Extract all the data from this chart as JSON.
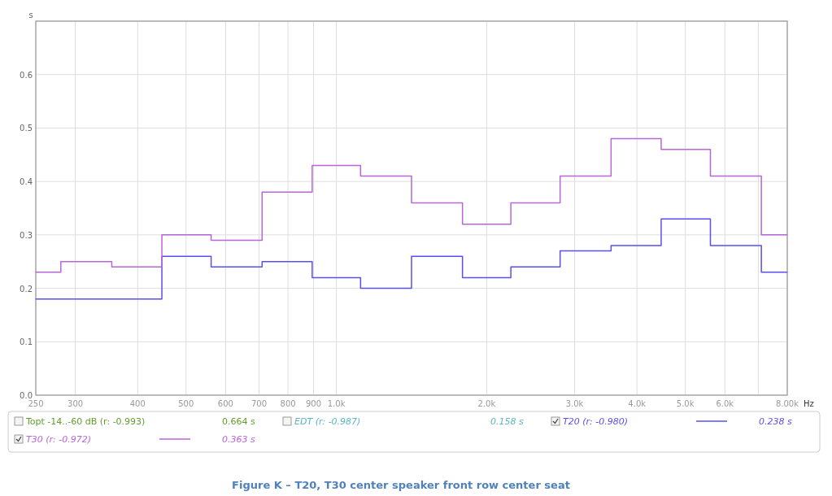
{
  "chart_data": {
    "type": "step",
    "title": "Figure K – T20, T30 center speaker front row center seat",
    "xlabel": "Hz",
    "ylabel": "s",
    "log": "x",
    "x": [
      250,
      315,
      400,
      500,
      630,
      800,
      1000,
      1250,
      1600,
      2000,
      2500,
      3150,
      4000,
      5000,
      6300,
      8000
    ],
    "xlim": [
      250,
      8000
    ],
    "xticks": [
      250,
      300,
      400,
      500,
      600,
      700,
      800,
      900,
      {
        "value": 1000,
        "label": "1.0k"
      },
      {
        "value": 2000,
        "label": "2.0k"
      },
      {
        "value": 3000,
        "label": "3.0k"
      },
      {
        "value": 4000,
        "label": "4.0k"
      },
      {
        "value": 5000,
        "label": "5.0k"
      },
      {
        "value": 6000,
        "label": "6.0k"
      },
      {
        "value": 7000,
        "label": null
      },
      {
        "value": 8000,
        "label": "8.00k"
      }
    ],
    "ylim": [
      0,
      0.7
    ],
    "yticks": [
      {
        "value": 0,
        "label": "0.0"
      },
      {
        "value": 0.1,
        "label": "0.1"
      },
      {
        "value": 0.2,
        "label": "0.2"
      },
      {
        "value": 0.3,
        "label": "0.3"
      },
      {
        "value": 0.4,
        "label": "0.4"
      },
      {
        "value": 0.5,
        "label": "0.5"
      },
      {
        "value": 0.6,
        "label": "0.6"
      },
      {
        "value": 0.7,
        "label": null
      }
    ],
    "grid": true,
    "legend": "bottom",
    "series": [
      {
        "name": "T20 (r: -0.980)",
        "color": "#5a4ff0",
        "values": [
          0.18,
          0.18,
          0.18,
          0.26,
          0.24,
          0.25,
          0.22,
          0.2,
          0.26,
          0.22,
          0.24,
          0.27,
          0.28,
          0.33,
          0.28,
          0.23
        ]
      },
      {
        "name": "T30 (r: -0.972)",
        "color": "#b866d6",
        "values": [
          0.23,
          0.25,
          0.24,
          0.3,
          0.29,
          0.38,
          0.43,
          0.41,
          0.36,
          0.32,
          0.36,
          0.41,
          0.48,
          0.46,
          0.41,
          0.3
        ]
      }
    ],
    "annotations": [
      "Topt -14..-60 dB (r: -0.993)",
      "0.664 s",
      "EDT (r: -0.987)",
      "0.158 s",
      "0.238 s",
      "0.363 s"
    ]
  }
}
